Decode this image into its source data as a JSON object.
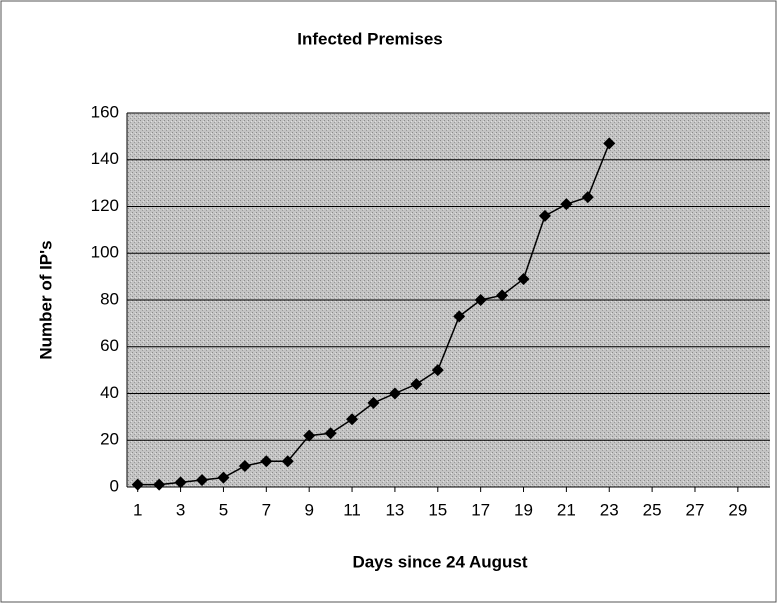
{
  "chart_data": {
    "type": "line",
    "title": "Infected Premises",
    "x_label": "Days since 24 August",
    "y_label": "Number of IP's",
    "x": [
      1,
      2,
      3,
      4,
      5,
      6,
      7,
      8,
      9,
      10,
      11,
      12,
      13,
      14,
      15,
      16,
      17,
      18,
      19,
      20,
      21,
      22,
      23
    ],
    "series": [
      {
        "name": "Infected Premises",
        "color": "#000000",
        "values": [
          1,
          1,
          2,
          3,
          4,
          9,
          11,
          11,
          22,
          23,
          29,
          36,
          40,
          44,
          50,
          73,
          80,
          82,
          89,
          116,
          121,
          124,
          147
        ]
      }
    ],
    "xlim": [
      0.5,
      30.5
    ],
    "xticks": [
      1,
      3,
      5,
      7,
      9,
      11,
      13,
      15,
      17,
      19,
      21,
      23,
      25,
      27,
      29
    ],
    "ylim": [
      0,
      160
    ],
    "yticks": [
      0,
      20,
      40,
      60,
      80,
      100,
      120,
      140,
      160
    ],
    "grid": true
  }
}
